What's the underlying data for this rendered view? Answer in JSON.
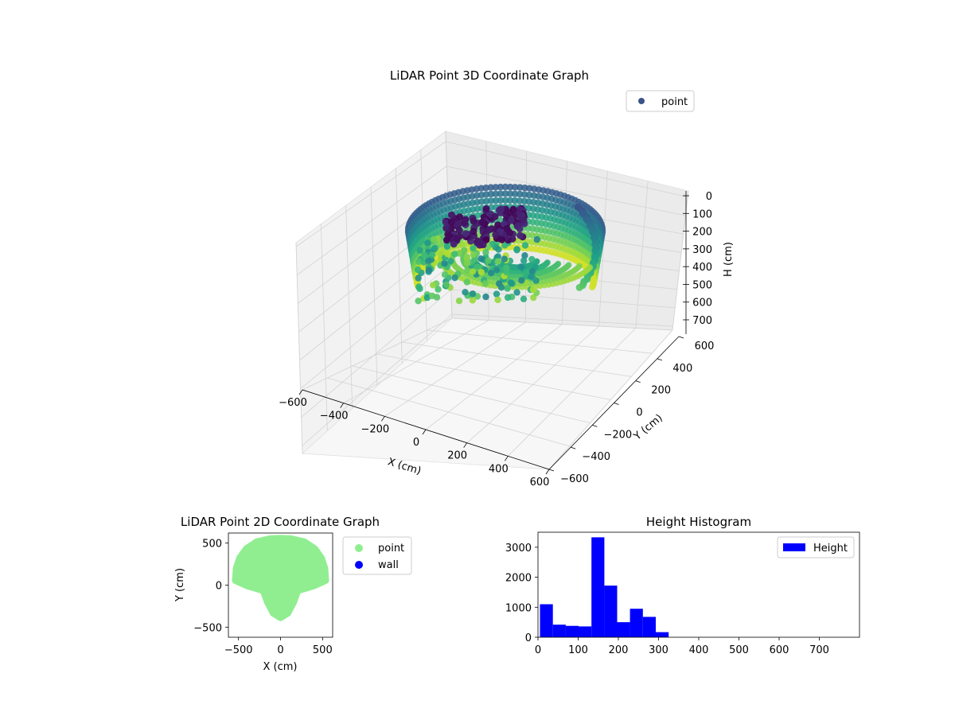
{
  "chart_data": [
    {
      "type": "scatter",
      "projection": "3d",
      "title": "LiDAR Point 3D Coordinate Graph",
      "xlabel": "X (cm)",
      "ylabel": "Y (cm)",
      "zlabel": "H (cm)",
      "xlim": [
        -600,
        600
      ],
      "ylim": [
        -600,
        600
      ],
      "zlim": [
        0,
        700
      ],
      "z_inverted": true,
      "grid": true,
      "legend": {
        "placement": "top-right",
        "entries": [
          {
            "label": "point",
            "color": "#3b528b"
          }
        ]
      },
      "colormap": "viridis",
      "x_ticks": [
        "−600",
        "−400",
        "−200",
        "0",
        "200",
        "400",
        "600"
      ],
      "y_ticks": [
        "−600",
        "−400",
        "−200",
        "0",
        "200",
        "400",
        "600"
      ],
      "z_ticks": [
        "0",
        "100",
        "200",
        "300",
        "400",
        "500",
        "600",
        "700"
      ]
    },
    {
      "type": "scatter",
      "title": "LiDAR Point 2D Coordinate Graph",
      "xlabel": "X (cm)",
      "ylabel": "Y (cm)",
      "xlim": [
        -620,
        620
      ],
      "ylim": [
        -620,
        620
      ],
      "x_ticks": [
        -500,
        0,
        500
      ],
      "y_ticks": [
        -500,
        0,
        500
      ],
      "series": [
        {
          "name": "point",
          "color": "#90ee90"
        },
        {
          "name": "wall",
          "color": "#0000ff"
        }
      ],
      "point_region_outline": [
        [
          -530,
          60
        ],
        [
          -520,
          200
        ],
        [
          -480,
          320
        ],
        [
          -400,
          430
        ],
        [
          -280,
          510
        ],
        [
          -120,
          545
        ],
        [
          0,
          550
        ],
        [
          120,
          545
        ],
        [
          280,
          510
        ],
        [
          400,
          430
        ],
        [
          480,
          320
        ],
        [
          520,
          200
        ],
        [
          530,
          60
        ],
        [
          400,
          0
        ],
        [
          200,
          -60
        ],
        [
          150,
          -200
        ],
        [
          80,
          -330
        ],
        [
          0,
          -380
        ],
        [
          -80,
          -330
        ],
        [
          -150,
          -200
        ],
        [
          -200,
          -60
        ],
        [
          -400,
          0
        ]
      ],
      "legend": {
        "placement": "outside-right"
      }
    },
    {
      "type": "bar",
      "title": "Height Histogram",
      "xlabel": "",
      "ylabel": "",
      "xlim": [
        0,
        800
      ],
      "ylim": [
        0,
        3500
      ],
      "x_ticks": [
        0,
        100,
        200,
        300,
        400,
        500,
        600,
        700
      ],
      "y_ticks": [
        0,
        1000,
        2000,
        3000
      ],
      "bin_width": 32,
      "bins": [
        {
          "start": 5,
          "count": 1100
        },
        {
          "start": 37,
          "count": 420
        },
        {
          "start": 69,
          "count": 380
        },
        {
          "start": 101,
          "count": 360
        },
        {
          "start": 133,
          "count": 3330
        },
        {
          "start": 165,
          "count": 1720
        },
        {
          "start": 197,
          "count": 500
        },
        {
          "start": 229,
          "count": 950
        },
        {
          "start": 261,
          "count": 680
        },
        {
          "start": 293,
          "count": 170
        }
      ],
      "series": [
        {
          "name": "Height",
          "color": "#0000ff"
        }
      ],
      "legend": {
        "placement": "top-right"
      }
    }
  ]
}
